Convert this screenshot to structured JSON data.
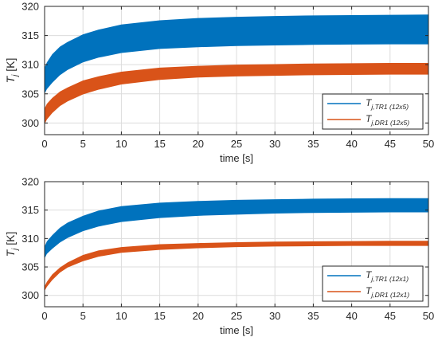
{
  "chart_data": [
    {
      "type": "area",
      "title": "",
      "xlabel": "time [s]",
      "ylabel": "T_j [K]",
      "ylabel_main": "T",
      "ylabel_sub": "j",
      "ylabel_unit": " [K]",
      "xlim": [
        0,
        50
      ],
      "ylim": [
        298,
        320
      ],
      "x_ticks": [
        0,
        5,
        10,
        15,
        20,
        25,
        30,
        35,
        40,
        45,
        50
      ],
      "y_ticks": [
        300,
        305,
        310,
        315,
        320
      ],
      "grid": true,
      "legend_position": "bottom-right",
      "series": [
        {
          "name": "T_j,TR1 (12x5)",
          "legend_main": "T",
          "legend_sub": "j,TR1 (12x5)",
          "color": "#0072BD",
          "x": [
            0,
            0.3,
            1,
            2,
            3,
            5,
            7,
            10,
            15,
            20,
            25,
            30,
            35,
            40,
            45,
            50
          ],
          "lower": [
            305.0,
            305.8,
            306.9,
            308.2,
            309.1,
            310.4,
            311.2,
            312.0,
            312.7,
            313.0,
            313.2,
            313.3,
            313.4,
            313.45,
            313.5,
            313.5
          ],
          "upper": [
            309.5,
            310.4,
            311.8,
            313.1,
            313.9,
            315.2,
            316.0,
            316.9,
            317.6,
            318.0,
            318.2,
            318.35,
            318.45,
            318.5,
            318.55,
            318.6
          ]
        },
        {
          "name": "T_j,DR1 (12x5)",
          "legend_main": "T",
          "legend_sub": "j,DR1 (12x5)",
          "color": "#D95319",
          "x": [
            0,
            0.3,
            1,
            2,
            3,
            5,
            7,
            10,
            15,
            20,
            25,
            30,
            35,
            40,
            45,
            50
          ],
          "lower": [
            299.8,
            300.6,
            301.7,
            302.9,
            303.7,
            304.9,
            305.7,
            306.6,
            307.4,
            307.8,
            308.0,
            308.1,
            308.2,
            308.25,
            308.3,
            308.3
          ],
          "upper": [
            302.5,
            303.3,
            304.3,
            305.4,
            306.1,
            307.3,
            308.0,
            308.8,
            309.5,
            309.8,
            310.0,
            310.1,
            310.2,
            310.25,
            310.3,
            310.3
          ]
        }
      ]
    },
    {
      "type": "area",
      "title": "",
      "xlabel": "time [s]",
      "ylabel": "T_j [K]",
      "ylabel_main": "T",
      "ylabel_sub": "j",
      "ylabel_unit": " [K]",
      "xlim": [
        0,
        50
      ],
      "ylim": [
        298,
        320
      ],
      "x_ticks": [
        0,
        5,
        10,
        15,
        20,
        25,
        30,
        35,
        40,
        45,
        50
      ],
      "y_ticks": [
        300,
        305,
        310,
        315,
        320
      ],
      "grid": true,
      "legend_position": "bottom-right",
      "series": [
        {
          "name": "T_j,TR1 (12x1)",
          "legend_main": "T",
          "legend_sub": "j,TR1 (12x1)",
          "color": "#0072BD",
          "x": [
            0,
            0.3,
            1,
            2,
            3,
            5,
            7,
            10,
            15,
            20,
            25,
            30,
            35,
            40,
            45,
            50
          ],
          "lower": [
            306.5,
            307.3,
            308.2,
            309.3,
            310.1,
            311.3,
            312.1,
            312.9,
            313.6,
            314.0,
            314.2,
            314.4,
            314.5,
            314.55,
            314.6,
            314.6
          ],
          "upper": [
            308.6,
            309.5,
            310.6,
            311.9,
            312.8,
            314.0,
            314.9,
            315.7,
            316.3,
            316.6,
            316.8,
            316.9,
            317.0,
            317.05,
            317.1,
            317.1
          ]
        },
        {
          "name": "T_j,DR1 (12x1)",
          "legend_main": "T",
          "legend_sub": "j,DR1 (12x1)",
          "color": "#D95319",
          "x": [
            0,
            0.3,
            1,
            2,
            3,
            5,
            7,
            10,
            15,
            20,
            25,
            30,
            35,
            40,
            45,
            50
          ],
          "lower": [
            300.8,
            301.5,
            302.7,
            304.0,
            304.9,
            306.0,
            306.8,
            307.5,
            308.0,
            308.3,
            308.5,
            308.6,
            308.65,
            308.7,
            308.7,
            308.7
          ],
          "upper": [
            301.6,
            302.4,
            303.7,
            304.9,
            305.8,
            307.1,
            307.9,
            308.5,
            309.0,
            309.2,
            309.35,
            309.45,
            309.5,
            309.55,
            309.6,
            309.6
          ]
        }
      ]
    }
  ]
}
